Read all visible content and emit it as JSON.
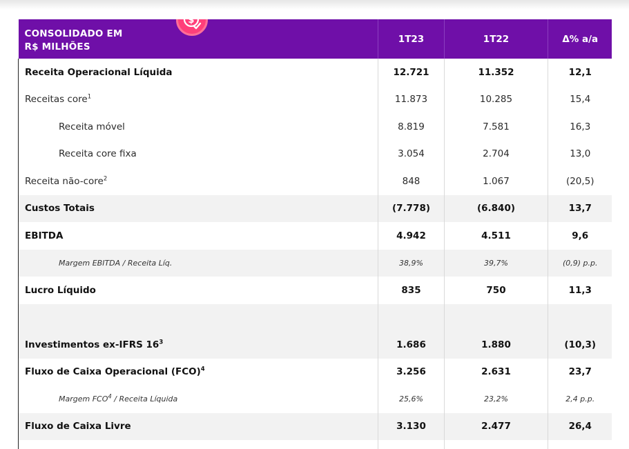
{
  "header": {
    "corner_line1": "CONSOLIDADO EM",
    "corner_line2": "R$ MILHÕES",
    "col1": "1T23",
    "col2": "1T22",
    "col3": "Δ% a/a",
    "badge_icon": "money-check-icon",
    "accent_color": "#6f0fa8",
    "badge_color": "#ff3f7a"
  },
  "rows": [
    {
      "label": "Receita Operacional Líquida",
      "sup": "",
      "v1": "12.721",
      "v2": "11.352",
      "v3": "12,1"
    },
    {
      "label": "Receitas core",
      "sup": "1",
      "v1": "11.873",
      "v2": "10.285",
      "v3": "15,4"
    },
    {
      "label": "Receita móvel",
      "sup": "",
      "v1": "8.819",
      "v2": "7.581",
      "v3": "16,3"
    },
    {
      "label": "Receita core fixa",
      "sup": "",
      "v1": "3.054",
      "v2": "2.704",
      "v3": "13,0"
    },
    {
      "label": "Receita não-core",
      "sup": "2",
      "v1": "848",
      "v2": "1.067",
      "v3": "(20,5)"
    },
    {
      "label": "Custos Totais",
      "sup": "",
      "v1": "(7.778)",
      "v2": "(6.840)",
      "v3": "13,7"
    },
    {
      "label": "EBITDA",
      "sup": "",
      "v1": "4.942",
      "v2": "4.511",
      "v3": "9,6"
    },
    {
      "label": "Margem EBITDA / Receita Líq.",
      "sup": "",
      "v1": "38,9%",
      "v2": "39,7%",
      "v3": "(0,9) p.p."
    },
    {
      "label": "Lucro Líquido",
      "sup": "",
      "v1": "835",
      "v2": "750",
      "v3": "11,3"
    },
    {
      "label": "Investimentos ex-IFRS 16",
      "sup": "3",
      "v1": "1.686",
      "v2": "1.880",
      "v3": "(10,3)"
    },
    {
      "label": "Fluxo de Caixa Operacional (FCO)",
      "sup": "4",
      "v1": "3.256",
      "v2": "2.631",
      "v3": "23,7"
    },
    {
      "label": "Margem FCO",
      "sup": "4",
      "label_suffix": " / Receita Líquida",
      "v1": "25,6%",
      "v2": "23,2%",
      "v3": "2,4 p.p."
    },
    {
      "label": "Fluxo de Caixa Livre",
      "sup": "",
      "v1": "3.130",
      "v2": "2.477",
      "v3": "26,4"
    }
  ]
}
